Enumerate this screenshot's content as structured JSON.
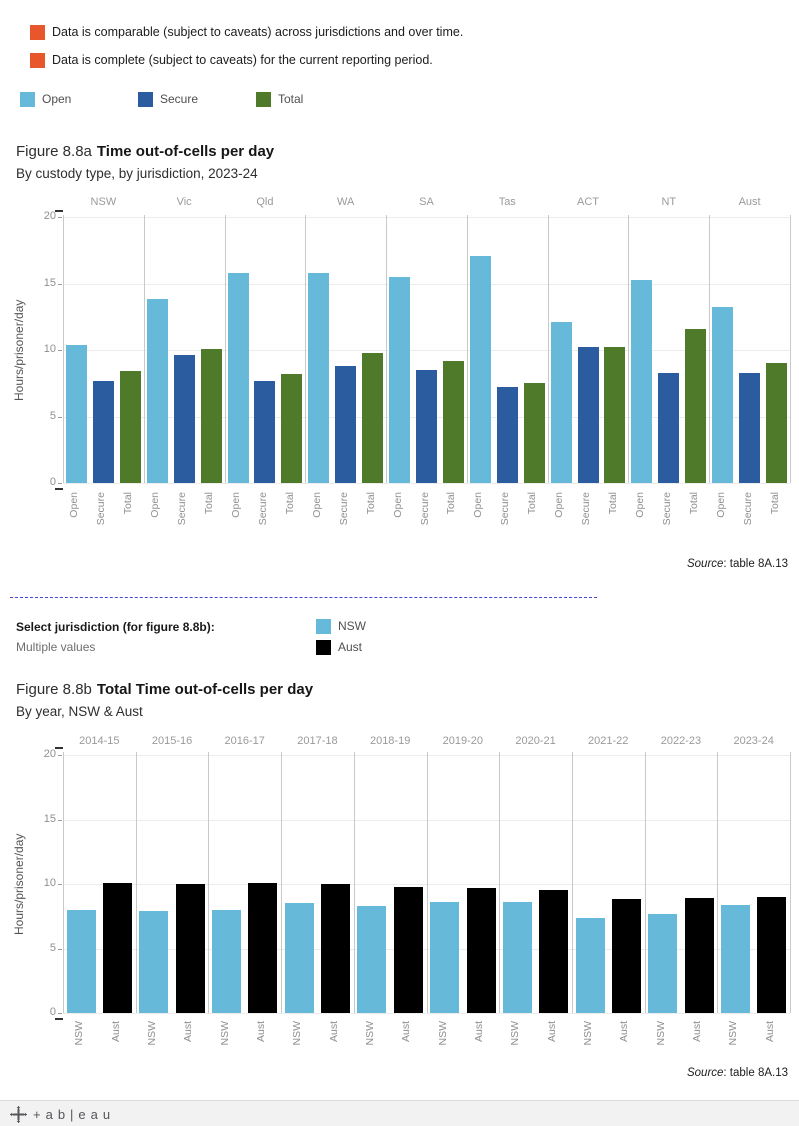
{
  "caveats": [
    {
      "label": "Data is comparable (subject to caveats) across jurisdictions and over time.",
      "color": "#e8572c"
    },
    {
      "label": "Data is complete (subject to caveats) for the current reporting period.",
      "color": "#e8572c"
    }
  ],
  "custody_legend": {
    "items": [
      {
        "label": "Open",
        "color": "#66b9d8"
      },
      {
        "label": "Secure",
        "color": "#2b5c9f"
      },
      {
        "label": "Total",
        "color": "#4e7a2a"
      }
    ]
  },
  "figure_a": {
    "title_prefix": "Figure 8.8a",
    "title_bold": "Time out-of-cells per day",
    "subtitle": "By custody type, by jurisdiction, 2023-24",
    "source_label": "Source",
    "source_text": ": table 8A.13"
  },
  "filter": {
    "label": "Select jurisdiction (for figure 8.8b):",
    "value": "Multiple values"
  },
  "jurisdiction_legend": {
    "items": [
      {
        "label": "NSW",
        "color": "#66b9d8"
      },
      {
        "label": "Aust",
        "color": "#000000"
      }
    ]
  },
  "figure_b": {
    "title_prefix": "Figure 8.8b",
    "title_bold": "Total Time out-of-cells per day",
    "subtitle": "By year, NSW & Aust",
    "source_label": "Source",
    "source_text": ": table 8A.13"
  },
  "footer": {
    "logo_text": "+ab|eau"
  },
  "chart_data": [
    {
      "type": "bar",
      "title": "Figure 8.8a Time out-of-cells per day",
      "subtitle": "By custody type, by jurisdiction, 2023-24",
      "xlabel": "",
      "ylabel": "Hours/prisoner/day",
      "ylim": [
        0,
        20
      ],
      "yticks": [
        0,
        5,
        10,
        15,
        20
      ],
      "grid": true,
      "legend_position": "top",
      "categories": [
        "NSW",
        "Vic",
        "Qld",
        "WA",
        "SA",
        "Tas",
        "ACT",
        "NT",
        "Aust"
      ],
      "series": [
        {
          "name": "Open",
          "color": "#66b9d8",
          "values": [
            10.4,
            13.8,
            15.8,
            15.8,
            15.5,
            17.1,
            12.1,
            15.3,
            13.2
          ]
        },
        {
          "name": "Secure",
          "color": "#2b5c9f",
          "values": [
            7.7,
            9.6,
            7.7,
            8.8,
            8.5,
            7.2,
            10.2,
            8.3,
            8.3
          ]
        },
        {
          "name": "Total",
          "color": "#4e7a2a",
          "values": [
            8.4,
            10.1,
            8.2,
            9.8,
            9.2,
            7.5,
            10.2,
            11.6,
            9.0
          ]
        }
      ]
    },
    {
      "type": "bar",
      "title": "Figure 8.8b Total Time out-of-cells per day",
      "subtitle": "By year, NSW & Aust",
      "xlabel": "",
      "ylabel": "Hours/prisoner/day",
      "ylim": [
        0,
        20
      ],
      "yticks": [
        0,
        5,
        10,
        15,
        20
      ],
      "grid": true,
      "legend_position": "top",
      "categories": [
        "2014-15",
        "2015-16",
        "2016-17",
        "2017-18",
        "2018-19",
        "2019-20",
        "2020-21",
        "2021-22",
        "2022-23",
        "2023-24"
      ],
      "series": [
        {
          "name": "NSW",
          "color": "#66b9d8",
          "values": [
            8.0,
            7.9,
            8.0,
            8.5,
            8.3,
            8.6,
            8.6,
            7.4,
            7.7,
            8.4
          ]
        },
        {
          "name": "Aust",
          "color": "#000000",
          "values": [
            10.1,
            10.0,
            10.1,
            10.0,
            9.8,
            9.7,
            9.5,
            8.8,
            8.9,
            9.0
          ]
        }
      ]
    }
  ]
}
